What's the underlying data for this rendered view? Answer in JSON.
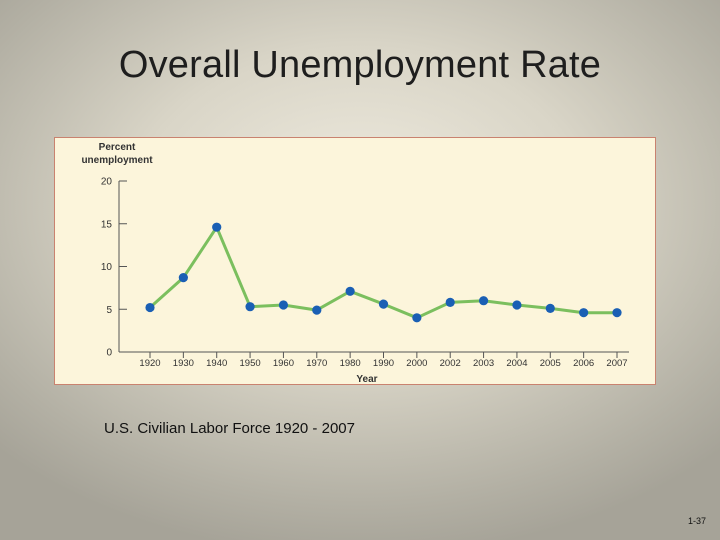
{
  "slide": {
    "title": "Overall Unemployment Rate",
    "caption": "U.S. Civilian Labor Force 1920 - 2007",
    "page_number": "1-37"
  },
  "chart_data": {
    "type": "line",
    "title": "",
    "ylabel_lines": [
      "Percent",
      "unemployment"
    ],
    "xlabel": "Year",
    "categories": [
      "1920",
      "1930",
      "1940",
      "1950",
      "1960",
      "1970",
      "1980",
      "1990",
      "2000",
      "2002",
      "2003",
      "2004",
      "2005",
      "2006",
      "2007"
    ],
    "series": [
      {
        "values": [
          5.2,
          8.7,
          14.6,
          5.3,
          5.5,
          4.9,
          7.1,
          5.6,
          4.0,
          5.8,
          6.0,
          5.5,
          5.1,
          4.6,
          4.6
        ]
      }
    ],
    "ylim": [
      0,
      20
    ],
    "yticks": [
      0,
      5,
      10,
      15,
      20
    ],
    "grid": false,
    "legend": "none",
    "colors": {
      "line": "#7bbf5e",
      "marker": "#1a5fb4",
      "axis": "#555555",
      "panel_background": "#fcf5db",
      "panel_border": "#c9826f"
    }
  }
}
